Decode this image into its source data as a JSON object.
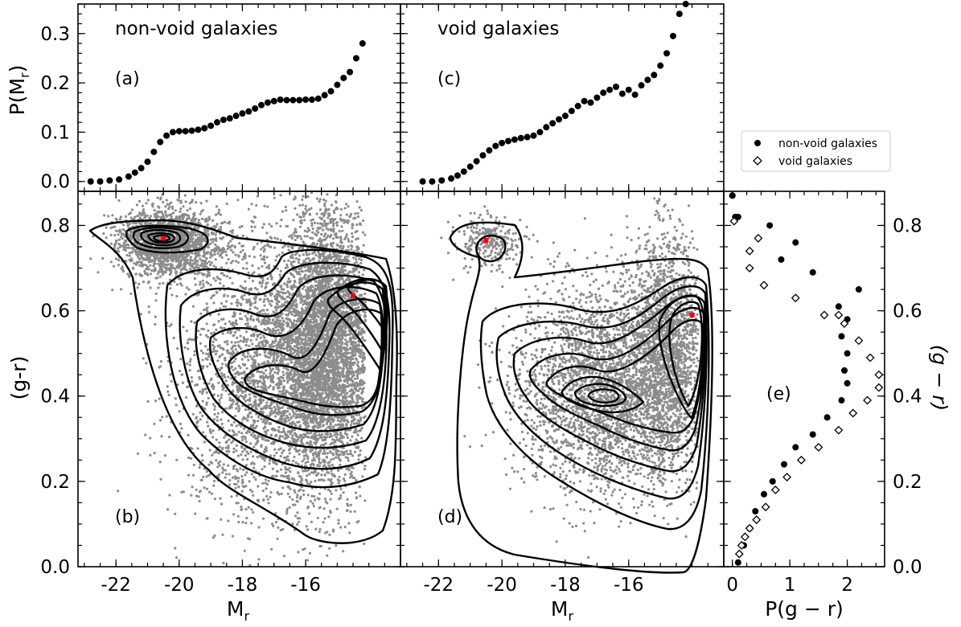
{
  "chart_data": [
    {
      "id": "a",
      "type": "scatter",
      "title": "non-void galaxies",
      "panel_label": "(a)",
      "ylabel": "P(M_r)",
      "ylim": [
        -0.02,
        0.36
      ],
      "xlim": [
        -23.2,
        -13.0
      ],
      "yticks": [
        0.0,
        0.1,
        0.2,
        0.3
      ],
      "ytick_labels": [
        "0.0",
        "0.1",
        "0.2",
        "0.3"
      ],
      "x": [
        -22.8,
        -22.5,
        -22.2,
        -21.9,
        -21.6,
        -21.4,
        -21.2,
        -21.0,
        -20.8,
        -20.6,
        -20.4,
        -20.2,
        -20.0,
        -19.8,
        -19.6,
        -19.4,
        -19.2,
        -19.0,
        -18.8,
        -18.6,
        -18.4,
        -18.2,
        -18.0,
        -17.8,
        -17.6,
        -17.4,
        -17.2,
        -17.0,
        -16.8,
        -16.6,
        -16.4,
        -16.2,
        -16.0,
        -15.8,
        -15.6,
        -15.4,
        -15.2,
        -15.0,
        -14.8,
        -14.6,
        -14.4,
        -14.2
      ],
      "y": [
        0.0,
        0.0,
        0.002,
        0.004,
        0.01,
        0.018,
        0.027,
        0.04,
        0.06,
        0.08,
        0.093,
        0.1,
        0.102,
        0.102,
        0.103,
        0.105,
        0.108,
        0.113,
        0.12,
        0.125,
        0.128,
        0.133,
        0.138,
        0.142,
        0.148,
        0.155,
        0.16,
        0.163,
        0.166,
        0.165,
        0.165,
        0.165,
        0.166,
        0.166,
        0.168,
        0.175,
        0.183,
        0.196,
        0.21,
        0.222,
        0.25,
        0.28
      ]
    },
    {
      "id": "c",
      "type": "scatter",
      "title": "void galaxies",
      "panel_label": "(c)",
      "ylim": [
        -0.02,
        0.36
      ],
      "xlim": [
        -23.2,
        -13.0
      ],
      "x": [
        -22.5,
        -22.2,
        -21.9,
        -21.6,
        -21.4,
        -21.2,
        -21.0,
        -20.8,
        -20.6,
        -20.4,
        -20.2,
        -20.0,
        -19.8,
        -19.6,
        -19.4,
        -19.2,
        -19.0,
        -18.8,
        -18.6,
        -18.4,
        -18.2,
        -18.0,
        -17.8,
        -17.6,
        -17.4,
        -17.2,
        -17.0,
        -16.8,
        -16.6,
        -16.4,
        -16.2,
        -16.0,
        -15.8,
        -15.6,
        -15.4,
        -15.2,
        -15.0,
        -14.8,
        -14.6,
        -14.4,
        -14.2
      ],
      "y": [
        0.0,
        0.0,
        0.002,
        0.006,
        0.012,
        0.02,
        0.03,
        0.041,
        0.053,
        0.063,
        0.072,
        0.078,
        0.082,
        0.085,
        0.088,
        0.09,
        0.093,
        0.1,
        0.11,
        0.118,
        0.126,
        0.133,
        0.143,
        0.153,
        0.163,
        0.16,
        0.17,
        0.18,
        0.186,
        0.192,
        0.178,
        0.186,
        0.176,
        0.195,
        0.206,
        0.216,
        0.235,
        0.26,
        0.295,
        0.34,
        0.36
      ]
    },
    {
      "id": "b",
      "type": "scatter",
      "panel_label": "(b)",
      "xlabel": "M_r",
      "ylabel": "(g-r)",
      "xlim": [
        -23.2,
        -13.0
      ],
      "ylim": [
        0.0,
        0.88
      ],
      "xticks": [
        -22,
        -20,
        -18,
        -16
      ],
      "xtick_labels": [
        "-22",
        "-20",
        "-18",
        "-16"
      ],
      "yticks": [
        0.0,
        0.2,
        0.4,
        0.6,
        0.8
      ],
      "ytick_labels": [
        "0.0",
        "0.2",
        "0.4",
        "0.6",
        "0.8"
      ],
      "peaks": [
        {
          "x": -20.5,
          "y": 0.77
        },
        {
          "x": -14.5,
          "y": 0.635
        }
      ],
      "contour_levels": 11
    },
    {
      "id": "d",
      "type": "scatter",
      "panel_label": "(d)",
      "xlabel": "M_r",
      "xlim": [
        -23.2,
        -13.0
      ],
      "ylim": [
        0.0,
        0.88
      ],
      "xticks": [
        -22,
        -20,
        -18,
        -16
      ],
      "xtick_labels": [
        "-22",
        "-20",
        "-18",
        "-16"
      ],
      "peaks": [
        {
          "x": -20.5,
          "y": 0.765
        },
        {
          "x": -14.0,
          "y": 0.59
        }
      ],
      "contour_levels": 10
    },
    {
      "id": "e",
      "type": "scatter",
      "panel_label": "(e)",
      "xlabel": "P(g − r)",
      "ylabel": "(g − r)",
      "xlim": [
        -0.15,
        2.65
      ],
      "ylim": [
        0.0,
        0.88
      ],
      "xticks": [
        0,
        1,
        2
      ],
      "xtick_labels": [
        "0",
        "1",
        "2"
      ],
      "series": [
        {
          "name": "non-void galaxies",
          "marker": "filled-circle",
          "x": [
            0.0,
            0.05,
            0.1,
            0.2,
            0.3,
            0.4,
            0.55,
            0.7,
            0.9,
            1.1,
            1.4,
            1.65,
            1.9,
            2.0,
            1.95,
            2.0,
            1.9,
            2.0,
            1.85,
            2.2,
            1.4,
            1.1,
            0.85,
            0.65,
            0.1,
            0.0
          ],
          "y": [
            0.87,
            0.82,
            0.01,
            0.05,
            0.09,
            0.13,
            0.17,
            0.2,
            0.24,
            0.28,
            0.31,
            0.35,
            0.39,
            0.43,
            0.46,
            0.5,
            0.54,
            0.58,
            0.61,
            0.65,
            0.69,
            0.76,
            0.72,
            0.8,
            0.82,
            0.87
          ]
        },
        {
          "name": "void galaxies",
          "marker": "open-diamond",
          "x": [
            0.12,
            0.16,
            0.22,
            0.3,
            0.42,
            0.58,
            0.75,
            0.95,
            1.2,
            1.5,
            1.85,
            2.1,
            2.35,
            2.55,
            2.55,
            2.4,
            2.2,
            1.95,
            1.85,
            1.6,
            1.1,
            0.55,
            0.3,
            0.3,
            0.45,
            0.03
          ],
          "y": [
            0.03,
            0.05,
            0.07,
            0.09,
            0.11,
            0.14,
            0.18,
            0.21,
            0.25,
            0.28,
            0.32,
            0.36,
            0.39,
            0.42,
            0.45,
            0.49,
            0.53,
            0.57,
            0.59,
            0.59,
            0.63,
            0.66,
            0.7,
            0.74,
            0.77,
            0.81
          ]
        }
      ]
    }
  ],
  "colors": {
    "scatter_points": "#8c8c8c",
    "peak_marker": "#ff0000",
    "contours": "#000000"
  }
}
